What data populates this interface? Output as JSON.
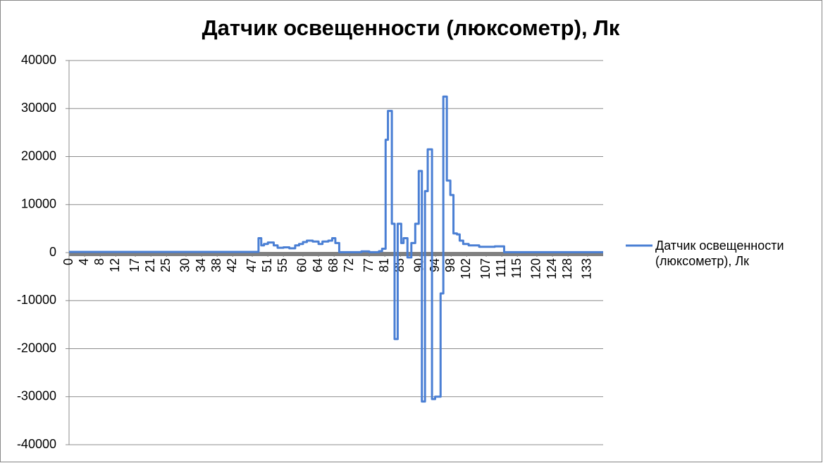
{
  "chart_data": {
    "type": "line",
    "title": "Датчик освещенности (люксометр), Лк",
    "x": [
      0,
      48.6,
      48.6,
      49.3,
      49.3,
      50,
      50,
      51,
      51,
      52.5,
      52.5,
      53.5,
      53.5,
      55,
      55,
      56.5,
      56.5,
      58,
      58,
      59,
      59,
      60,
      60,
      61,
      61,
      62.5,
      62.5,
      64,
      64,
      65,
      65,
      66.5,
      66.5,
      67.5,
      67.5,
      68.3,
      68.3,
      69.3,
      69.3,
      75,
      75,
      77,
      77,
      79.5,
      79.5,
      80.3,
      80.3,
      81.2,
      81.2,
      81.8,
      81.8,
      82.8,
      82.8,
      83.5,
      83.5,
      84.3,
      84.3,
      85.2,
      85.2,
      85.8,
      85.8,
      86.8,
      86.8,
      87.8,
      87.8,
      88.8,
      88.8,
      89.7,
      89.7,
      90.5,
      90.5,
      91.3,
      91.3,
      92,
      92,
      93.1,
      93.1,
      93.9,
      93.9,
      95.3,
      95.3,
      96,
      96,
      96.9,
      96.9,
      97.8,
      97.8,
      98.6,
      98.6,
      99.5,
      99.5,
      100.2,
      100.2,
      101.1,
      101.1,
      102.5,
      102.5,
      105.2,
      105.2,
      109.2,
      109.2,
      111.6,
      111.6,
      137
    ],
    "series": [
      {
        "name": "Датчик освещенности (люксометр), Лк",
        "color": "#4a7fd4",
        "values": [
          150,
          150,
          3000,
          3000,
          1500,
          1500,
          1800,
          1800,
          2100,
          2100,
          1500,
          1500,
          1000,
          1000,
          1100,
          1100,
          900,
          900,
          1500,
          1500,
          1800,
          1800,
          2200,
          2200,
          2500,
          2500,
          2300,
          2300,
          1800,
          1800,
          2300,
          2300,
          2500,
          2500,
          3000,
          3000,
          2000,
          2000,
          100,
          100,
          250,
          250,
          100,
          100,
          300,
          300,
          800,
          800,
          23500,
          23500,
          29500,
          29500,
          6000,
          6000,
          -18000,
          -18000,
          6000,
          6000,
          2000,
          2000,
          3000,
          3000,
          -1000,
          -1000,
          2000,
          2000,
          6000,
          6000,
          17000,
          17000,
          -31000,
          -31000,
          12800,
          12800,
          21500,
          21500,
          -30500,
          -30500,
          -30000,
          -30000,
          -8500,
          -8500,
          32500,
          32500,
          15000,
          15000,
          12000,
          12000,
          4000,
          4000,
          3800,
          3800,
          2500,
          2500,
          1800,
          1800,
          1500,
          1500,
          1200,
          1200,
          1300,
          1300,
          100,
          100
        ]
      }
    ],
    "xlim": [
      0,
      137
    ],
    "xticks": [
      0,
      4,
      8,
      12,
      17,
      21,
      25,
      30,
      34,
      38,
      42,
      47,
      51,
      55,
      60,
      64,
      68,
      72,
      77,
      81,
      85,
      90,
      94,
      98,
      102,
      107,
      111,
      115,
      120,
      124,
      128,
      133
    ],
    "ylim": [
      -40000,
      40000
    ],
    "yticks": [
      -40000,
      -30000,
      -20000,
      -10000,
      0,
      10000,
      20000,
      30000,
      40000
    ],
    "grid": true,
    "legend": "right"
  }
}
